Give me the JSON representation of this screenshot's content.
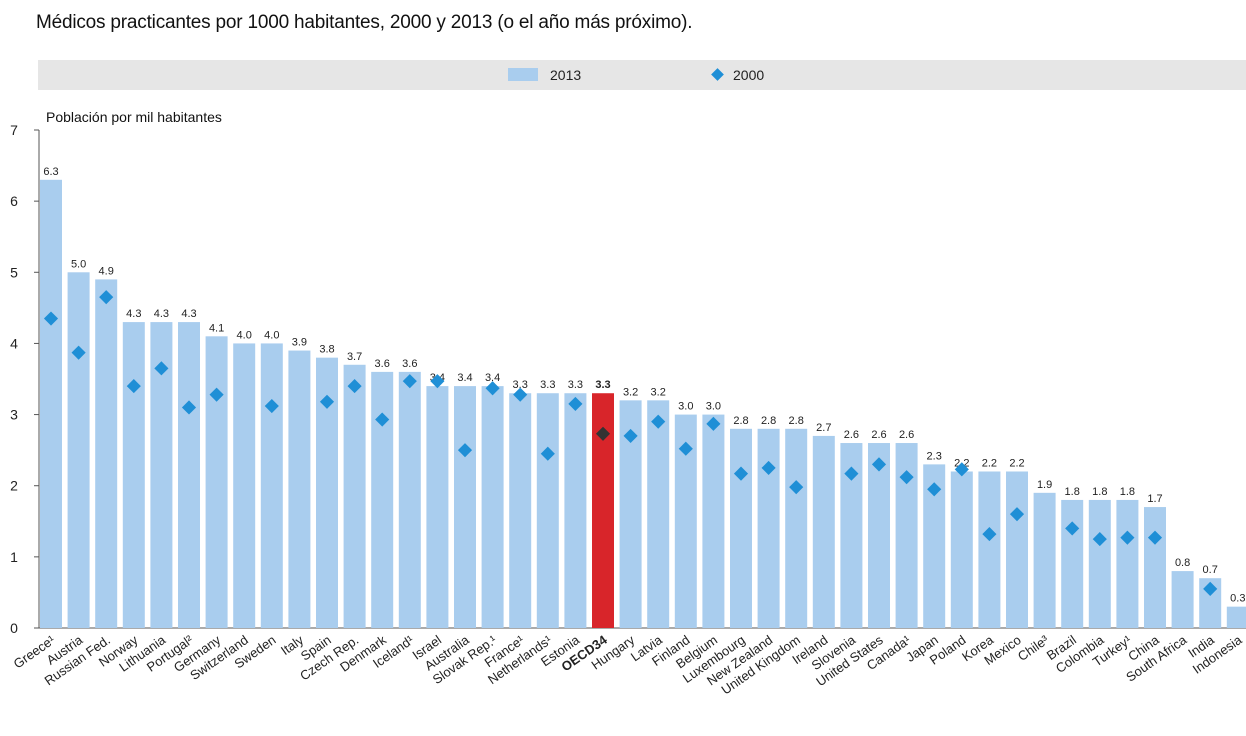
{
  "colors": {
    "bar_2013": "#a9cdee",
    "bar_highlight": "#d8252a",
    "marker_2000": "#1f8fd6",
    "marker_highlight": "#333333",
    "legend_band": "#e6e6e6"
  },
  "chart_data": {
    "type": "bar",
    "title": "Médicos practicantes por 1000 habitantes, 2000 y 2013 (o el año más próximo).",
    "ylabel": "Población por mil habitantes",
    "xlabel": "",
    "ylim": [
      0,
      7
    ],
    "yticks": [
      "0",
      "1",
      "2",
      "3",
      "4",
      "5",
      "6",
      "7"
    ],
    "legend": {
      "position": "top",
      "bar_label": "2013",
      "marker_label": "2000"
    },
    "highlight_category": "OECD34",
    "categories": [
      "Greece¹",
      "Austria",
      "Russian Fed.",
      "Norway",
      "Lithuania",
      "Portugal²",
      "Germany",
      "Switzerland",
      "Sweden",
      "Italy",
      "Spain",
      "Czech Rep.",
      "Denmark",
      "Iceland¹",
      "Israel",
      "Australia",
      "Slovak Rep.¹",
      "France¹",
      "Netherlands¹",
      "Estonia",
      "OECD34",
      "Hungary",
      "Latvia",
      "Finland",
      "Belgium",
      "Luxembourg",
      "New Zealand",
      "United Kingdom",
      "Ireland",
      "Slovenia",
      "United States",
      "Canada¹",
      "Japan",
      "Poland",
      "Korea",
      "Mexico",
      "Chile³",
      "Brazil",
      "Colombia",
      "Turkey¹",
      "China",
      "South Africa",
      "India",
      "Indonesia"
    ],
    "series": [
      {
        "name": "2013",
        "values": [
          6.3,
          5.0,
          4.9,
          4.3,
          4.3,
          4.3,
          4.1,
          4.0,
          4.0,
          3.9,
          3.8,
          3.7,
          3.6,
          3.6,
          3.4,
          3.4,
          3.4,
          3.3,
          3.3,
          3.3,
          3.3,
          3.2,
          3.2,
          3.0,
          3.0,
          2.8,
          2.8,
          2.8,
          2.7,
          2.6,
          2.6,
          2.6,
          2.3,
          2.2,
          2.2,
          2.2,
          1.9,
          1.8,
          1.8,
          1.8,
          1.7,
          0.8,
          0.7,
          0.3
        ],
        "labels": [
          "6.3",
          "5.0",
          "4.9",
          "4.3",
          "4.3",
          "4.3",
          "4.1",
          "4.0",
          "4.0",
          "3.9",
          "3.8",
          "3.7",
          "3.6",
          "3.6",
          "3.4",
          "3.4",
          "3.4",
          "3.3",
          "3.3",
          "3.3",
          "3.3",
          "3.2",
          "3.2",
          "3.0",
          "3.0",
          "2.8",
          "2.8",
          "2.8",
          "2.7",
          "2.6",
          "2.6",
          "2.6",
          "2.3",
          "2.2",
          "2.2",
          "2.2",
          "1.9",
          "1.8",
          "1.8",
          "1.8",
          "1.7",
          "0.8",
          "0.7",
          "0.3"
        ]
      },
      {
        "name": "2000",
        "values": [
          4.35,
          3.87,
          4.65,
          3.4,
          3.65,
          3.1,
          3.28,
          null,
          3.12,
          null,
          3.18,
          3.4,
          2.93,
          3.47,
          3.47,
          2.5,
          3.37,
          3.28,
          2.45,
          3.15,
          2.73,
          2.7,
          2.9,
          2.52,
          2.87,
          2.17,
          2.25,
          1.98,
          null,
          2.17,
          2.3,
          2.12,
          1.95,
          2.23,
          1.32,
          1.6,
          null,
          1.4,
          1.25,
          1.27,
          1.27,
          null,
          0.55,
          null
        ]
      }
    ]
  }
}
